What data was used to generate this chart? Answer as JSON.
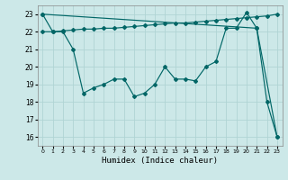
{
  "xlabel": "Humidex (Indice chaleur)",
  "xlim": [
    -0.5,
    23.5
  ],
  "ylim": [
    15.5,
    23.5
  ],
  "yticks": [
    16,
    17,
    18,
    19,
    20,
    21,
    22,
    23
  ],
  "xticks": [
    0,
    1,
    2,
    3,
    4,
    5,
    6,
    7,
    8,
    9,
    10,
    11,
    12,
    13,
    14,
    15,
    16,
    17,
    18,
    19,
    20,
    21,
    22,
    23
  ],
  "background_color": "#cce8e8",
  "grid_color": "#b0d4d4",
  "line_color": "#006666",
  "line1_x": [
    0,
    1,
    2,
    3,
    4,
    5,
    6,
    7,
    8,
    9,
    10,
    11,
    12,
    13,
    14,
    15,
    16,
    17,
    18,
    19,
    20,
    21,
    22,
    23
  ],
  "line1_y": [
    23.0,
    22.0,
    22.0,
    21.0,
    18.5,
    18.8,
    19.0,
    19.3,
    19.3,
    18.3,
    18.5,
    19.0,
    20.0,
    19.3,
    19.3,
    19.2,
    20.0,
    20.3,
    22.2,
    22.2,
    23.1,
    22.2,
    18.0,
    16.0
  ],
  "line2_x": [
    0,
    1,
    2,
    3,
    4,
    5,
    6,
    7,
    8,
    9,
    10,
    11,
    12,
    13,
    14,
    15,
    16,
    17,
    18,
    19,
    20,
    21,
    22,
    23
  ],
  "line2_y": [
    22.0,
    22.0,
    22.05,
    22.1,
    22.15,
    22.15,
    22.2,
    22.2,
    22.25,
    22.3,
    22.35,
    22.4,
    22.45,
    22.5,
    22.5,
    22.55,
    22.6,
    22.65,
    22.7,
    22.75,
    22.8,
    22.85,
    22.9,
    23.0
  ],
  "line3_x": [
    0,
    21,
    23
  ],
  "line3_y": [
    23.0,
    22.2,
    16.0
  ]
}
